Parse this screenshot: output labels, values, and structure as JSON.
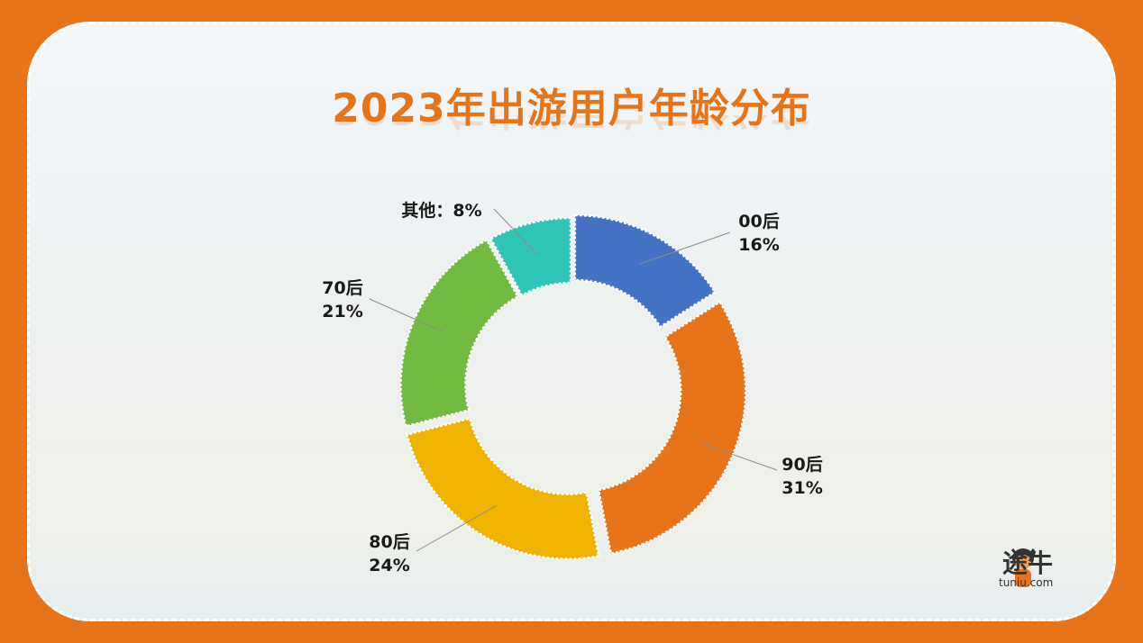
{
  "chart_data": {
    "type": "pie",
    "title": "2023年出游用户年龄分布",
    "slices": [
      {
        "label": "00后",
        "value": 16,
        "value_label": "16%",
        "color": "#4472C4"
      },
      {
        "label": "90后",
        "value": 31,
        "value_label": "31%",
        "color": "#E8741A"
      },
      {
        "label": "80后",
        "value": 24,
        "value_label": "24%",
        "color": "#F0B400"
      },
      {
        "label": "70后",
        "value": 21,
        "value_label": "21%",
        "color": "#72BB42"
      },
      {
        "label": "其他",
        "value": 8,
        "value_label": "8%",
        "color": "#2EC4B6"
      }
    ],
    "inline_label": "其他：8%",
    "donut": true
  },
  "brand": {
    "name": "途牛",
    "domain": "tuniu.com"
  },
  "colors": {
    "frame": "#E8741A",
    "title": "#E8741A"
  }
}
